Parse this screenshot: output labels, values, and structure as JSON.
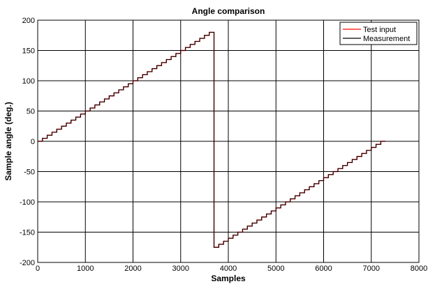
{
  "chart_data": {
    "type": "line",
    "title": "Angle comparison",
    "xlabel": "Samples",
    "ylabel": "Sample angle (deg.)",
    "xlim": [
      0,
      8000
    ],
    "ylim": [
      -200,
      200
    ],
    "grid": true,
    "legend_placement": "top-right",
    "xticks": [
      0,
      1000,
      2000,
      3000,
      4000,
      5000,
      6000,
      7000,
      8000
    ],
    "yticks": [
      -200,
      -150,
      -100,
      -50,
      0,
      50,
      100,
      150,
      200
    ],
    "xtick_labels": [
      "0",
      "1000",
      "2000",
      "3000",
      "4000",
      "5000",
      "6000",
      "7000",
      "8000"
    ],
    "ytick_labels": [
      "-200",
      "-150",
      "-100",
      "-50",
      "0",
      "50",
      "100",
      "150",
      "200"
    ],
    "series": [
      {
        "name": "Test input",
        "color": "#ff0000",
        "style": "staircase",
        "x": [
          0,
          100,
          200,
          300,
          400,
          500,
          600,
          700,
          800,
          900,
          1000,
          1100,
          1200,
          1300,
          1400,
          1500,
          1600,
          1700,
          1800,
          1900,
          2000,
          2100,
          2200,
          2300,
          2400,
          2500,
          2600,
          2700,
          2800,
          2900,
          3000,
          3100,
          3200,
          3300,
          3400,
          3500,
          3600,
          3700,
          3800,
          3900,
          4000,
          4100,
          4200,
          4300,
          4400,
          4500,
          4600,
          4700,
          4800,
          4900,
          5000,
          5100,
          5200,
          5300,
          5400,
          5500,
          5600,
          5700,
          5800,
          5900,
          6000,
          6100,
          6200,
          6300,
          6400,
          6500,
          6600,
          6700,
          6800,
          6900,
          7000,
          7100,
          7200,
          7300
        ],
        "y": [
          0,
          5,
          10,
          15,
          20,
          25,
          30,
          35,
          40,
          45,
          50,
          55,
          60,
          65,
          70,
          75,
          80,
          85,
          90,
          95,
          100,
          105,
          110,
          115,
          120,
          125,
          130,
          135,
          140,
          145,
          150,
          155,
          160,
          165,
          170,
          175,
          180,
          -175,
          -170,
          -165,
          -160,
          -155,
          -150,
          -145,
          -140,
          -135,
          -130,
          -125,
          -120,
          -115,
          -110,
          -105,
          -100,
          -95,
          -90,
          -85,
          -80,
          -75,
          -70,
          -65,
          -60,
          -55,
          -50,
          -45,
          -40,
          -35,
          -30,
          -25,
          -20,
          -15,
          -10,
          -5,
          0,
          0
        ]
      },
      {
        "name": "Measurement",
        "color": "#000000",
        "style": "staircase",
        "x": [
          0,
          100,
          200,
          300,
          400,
          500,
          600,
          700,
          800,
          900,
          1000,
          1100,
          1200,
          1300,
          1400,
          1500,
          1600,
          1700,
          1800,
          1900,
          2000,
          2100,
          2200,
          2300,
          2400,
          2500,
          2600,
          2700,
          2800,
          2900,
          3000,
          3100,
          3200,
          3300,
          3400,
          3500,
          3600,
          3700,
          3800,
          3900,
          4000,
          4100,
          4200,
          4300,
          4400,
          4500,
          4600,
          4700,
          4800,
          4900,
          5000,
          5100,
          5200,
          5300,
          5400,
          5500,
          5600,
          5700,
          5800,
          5900,
          6000,
          6100,
          6200,
          6300,
          6400,
          6500,
          6600,
          6700,
          6800,
          6900,
          7000,
          7100,
          7200,
          7300
        ],
        "y": [
          0,
          5,
          10,
          15,
          20,
          25,
          30,
          35,
          40,
          45,
          50,
          55,
          60,
          65,
          70,
          75,
          80,
          85,
          90,
          95,
          100,
          105,
          110,
          115,
          120,
          125,
          130,
          135,
          140,
          145,
          150,
          155,
          160,
          165,
          170,
          175,
          180,
          -175,
          -170,
          -165,
          -160,
          -155,
          -150,
          -145,
          -140,
          -135,
          -130,
          -125,
          -120,
          -115,
          -110,
          -105,
          -100,
          -95,
          -90,
          -85,
          -80,
          -75,
          -70,
          -65,
          -60,
          -55,
          -50,
          -45,
          -40,
          -35,
          -30,
          -25,
          -20,
          -15,
          -10,
          -5,
          0,
          0
        ]
      }
    ]
  }
}
